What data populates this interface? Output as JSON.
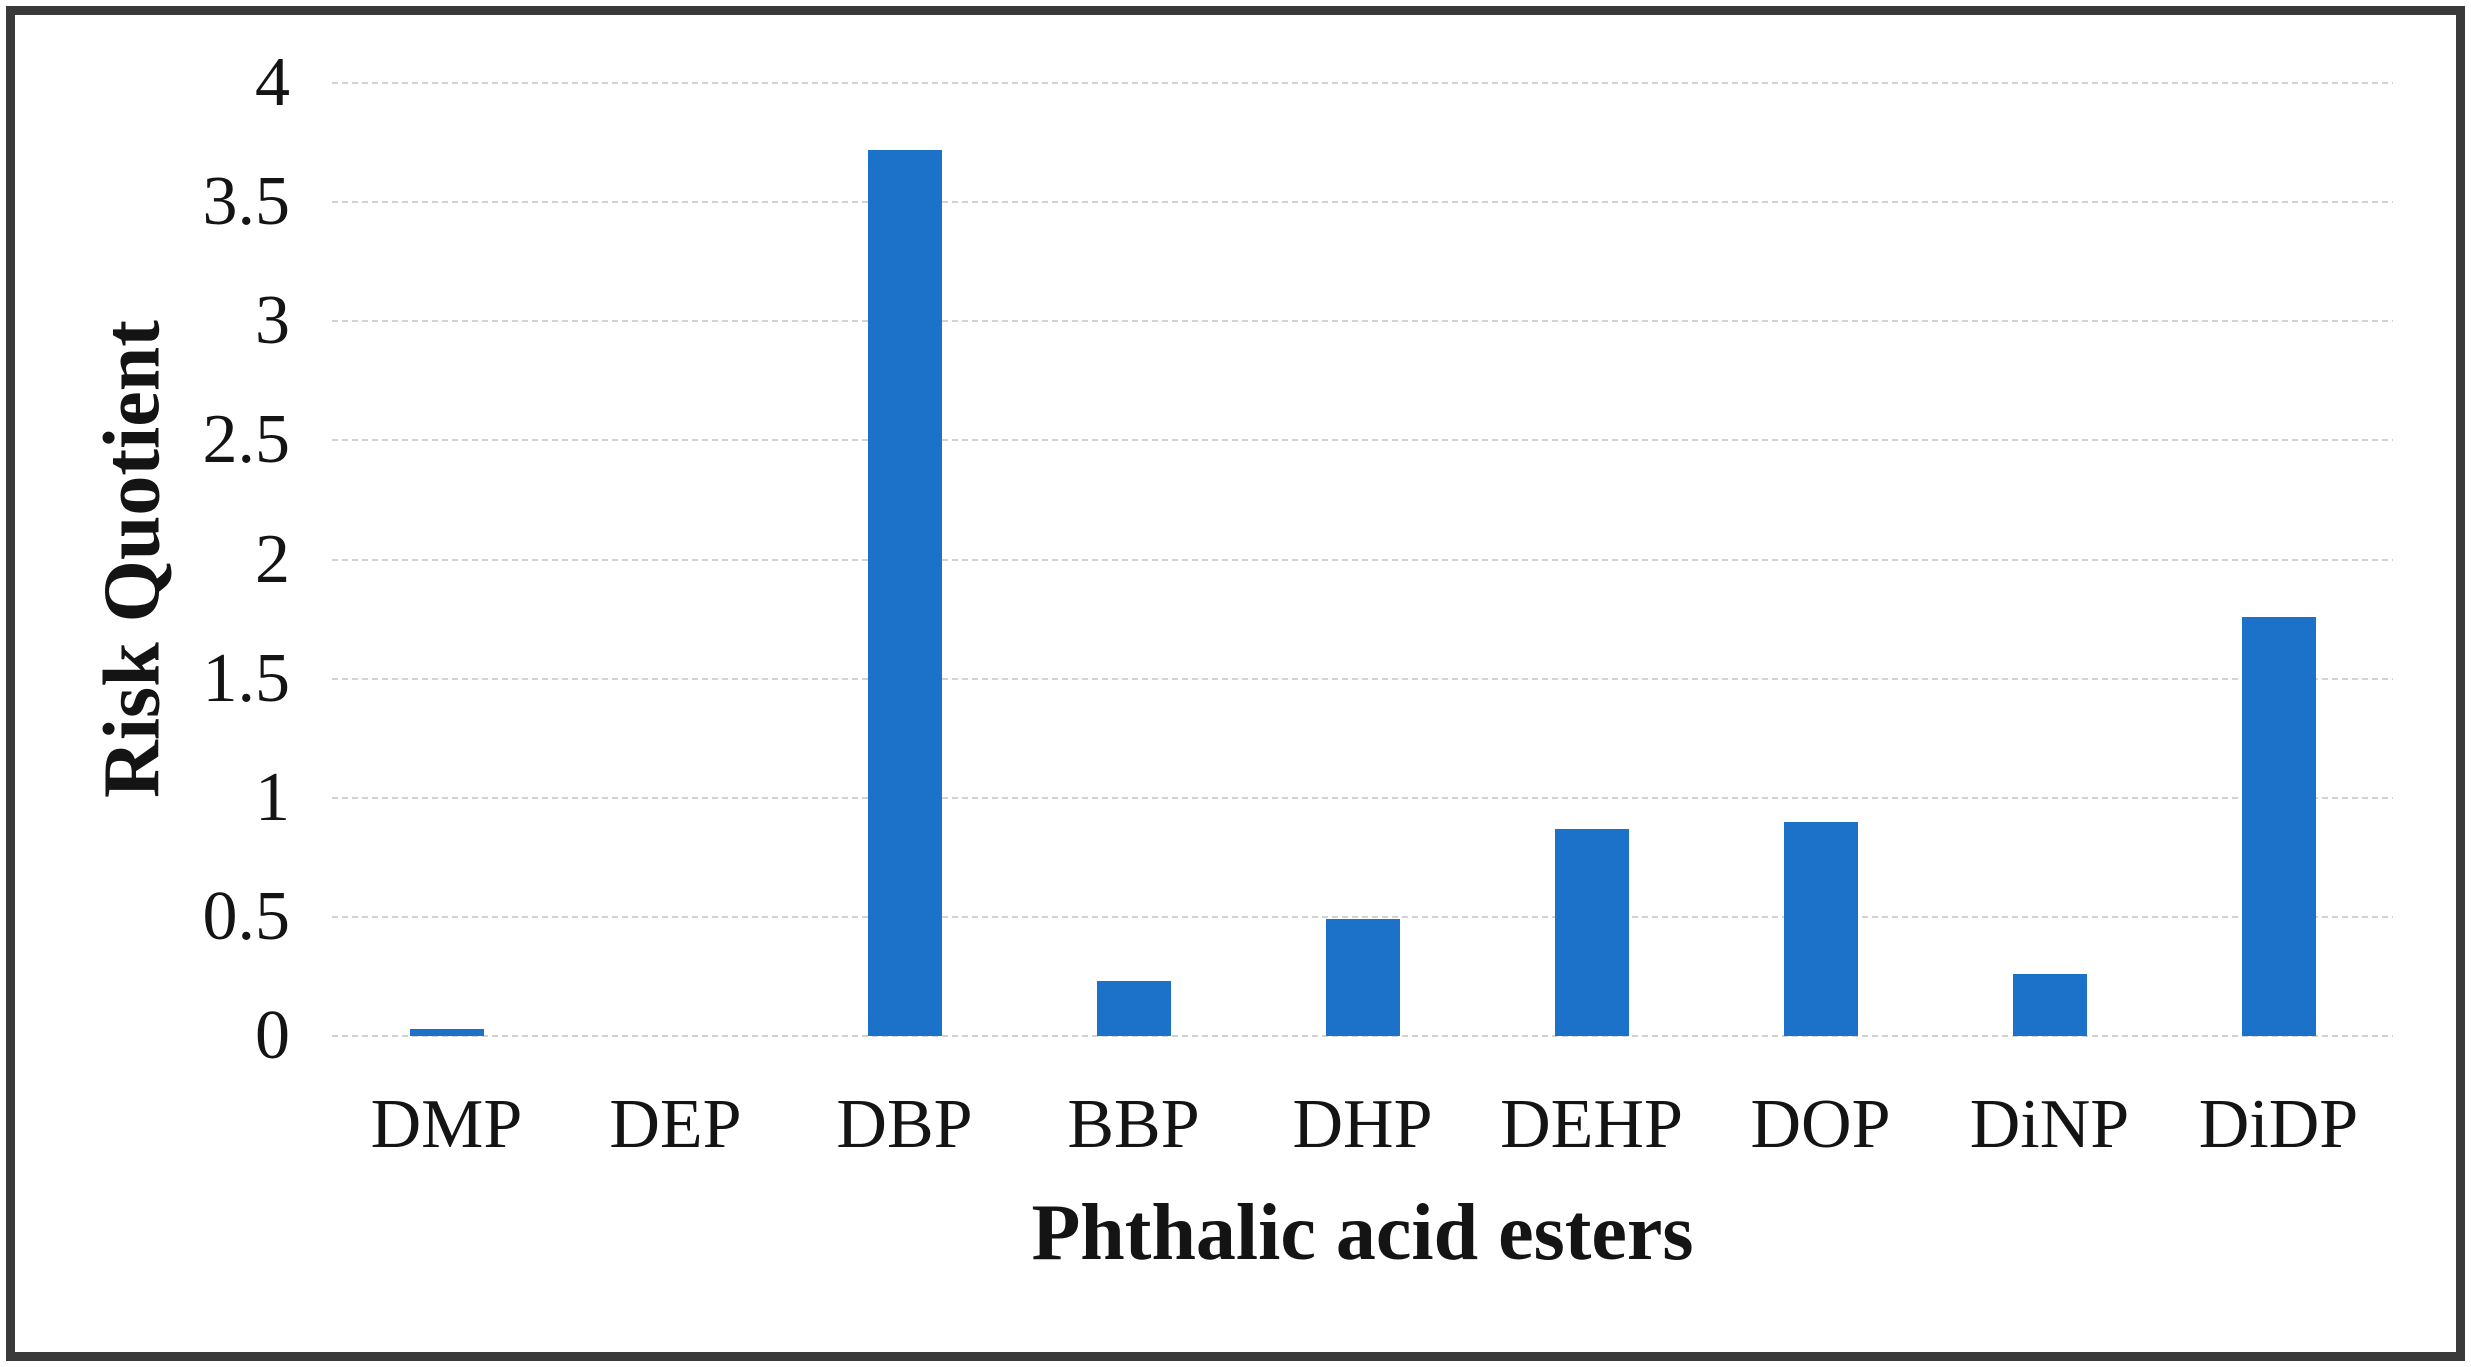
{
  "figure": {
    "kind": "bar-chart-figure",
    "background_color": "#ffffff",
    "frame_color": "#3a3a3a"
  },
  "chart_data": {
    "type": "bar",
    "title": "",
    "categories": [
      "DMP",
      "DEP",
      "DBP",
      "BBP",
      "DHP",
      "DEHP",
      "DOP",
      "DiNP",
      "DiDP"
    ],
    "values": [
      0.03,
      0,
      3.72,
      0.23,
      0.49,
      0.87,
      0.9,
      0.26,
      1.76
    ],
    "xlabel": "Phthalic acid esters",
    "ylabel": "Risk Quotient",
    "ylim": [
      0,
      4
    ],
    "yticks": [
      0,
      0.5,
      1,
      1.5,
      2,
      2.5,
      3,
      3.5,
      4
    ],
    "ytick_labels": [
      "0",
      "0.5",
      "1",
      "1.5",
      "2",
      "2.5",
      "3",
      "3.5",
      "4"
    ],
    "grid": true,
    "legend": null,
    "bar_color": "#1c72c9",
    "gridline_color": "#d2d2d2",
    "text_color": "#141414"
  }
}
